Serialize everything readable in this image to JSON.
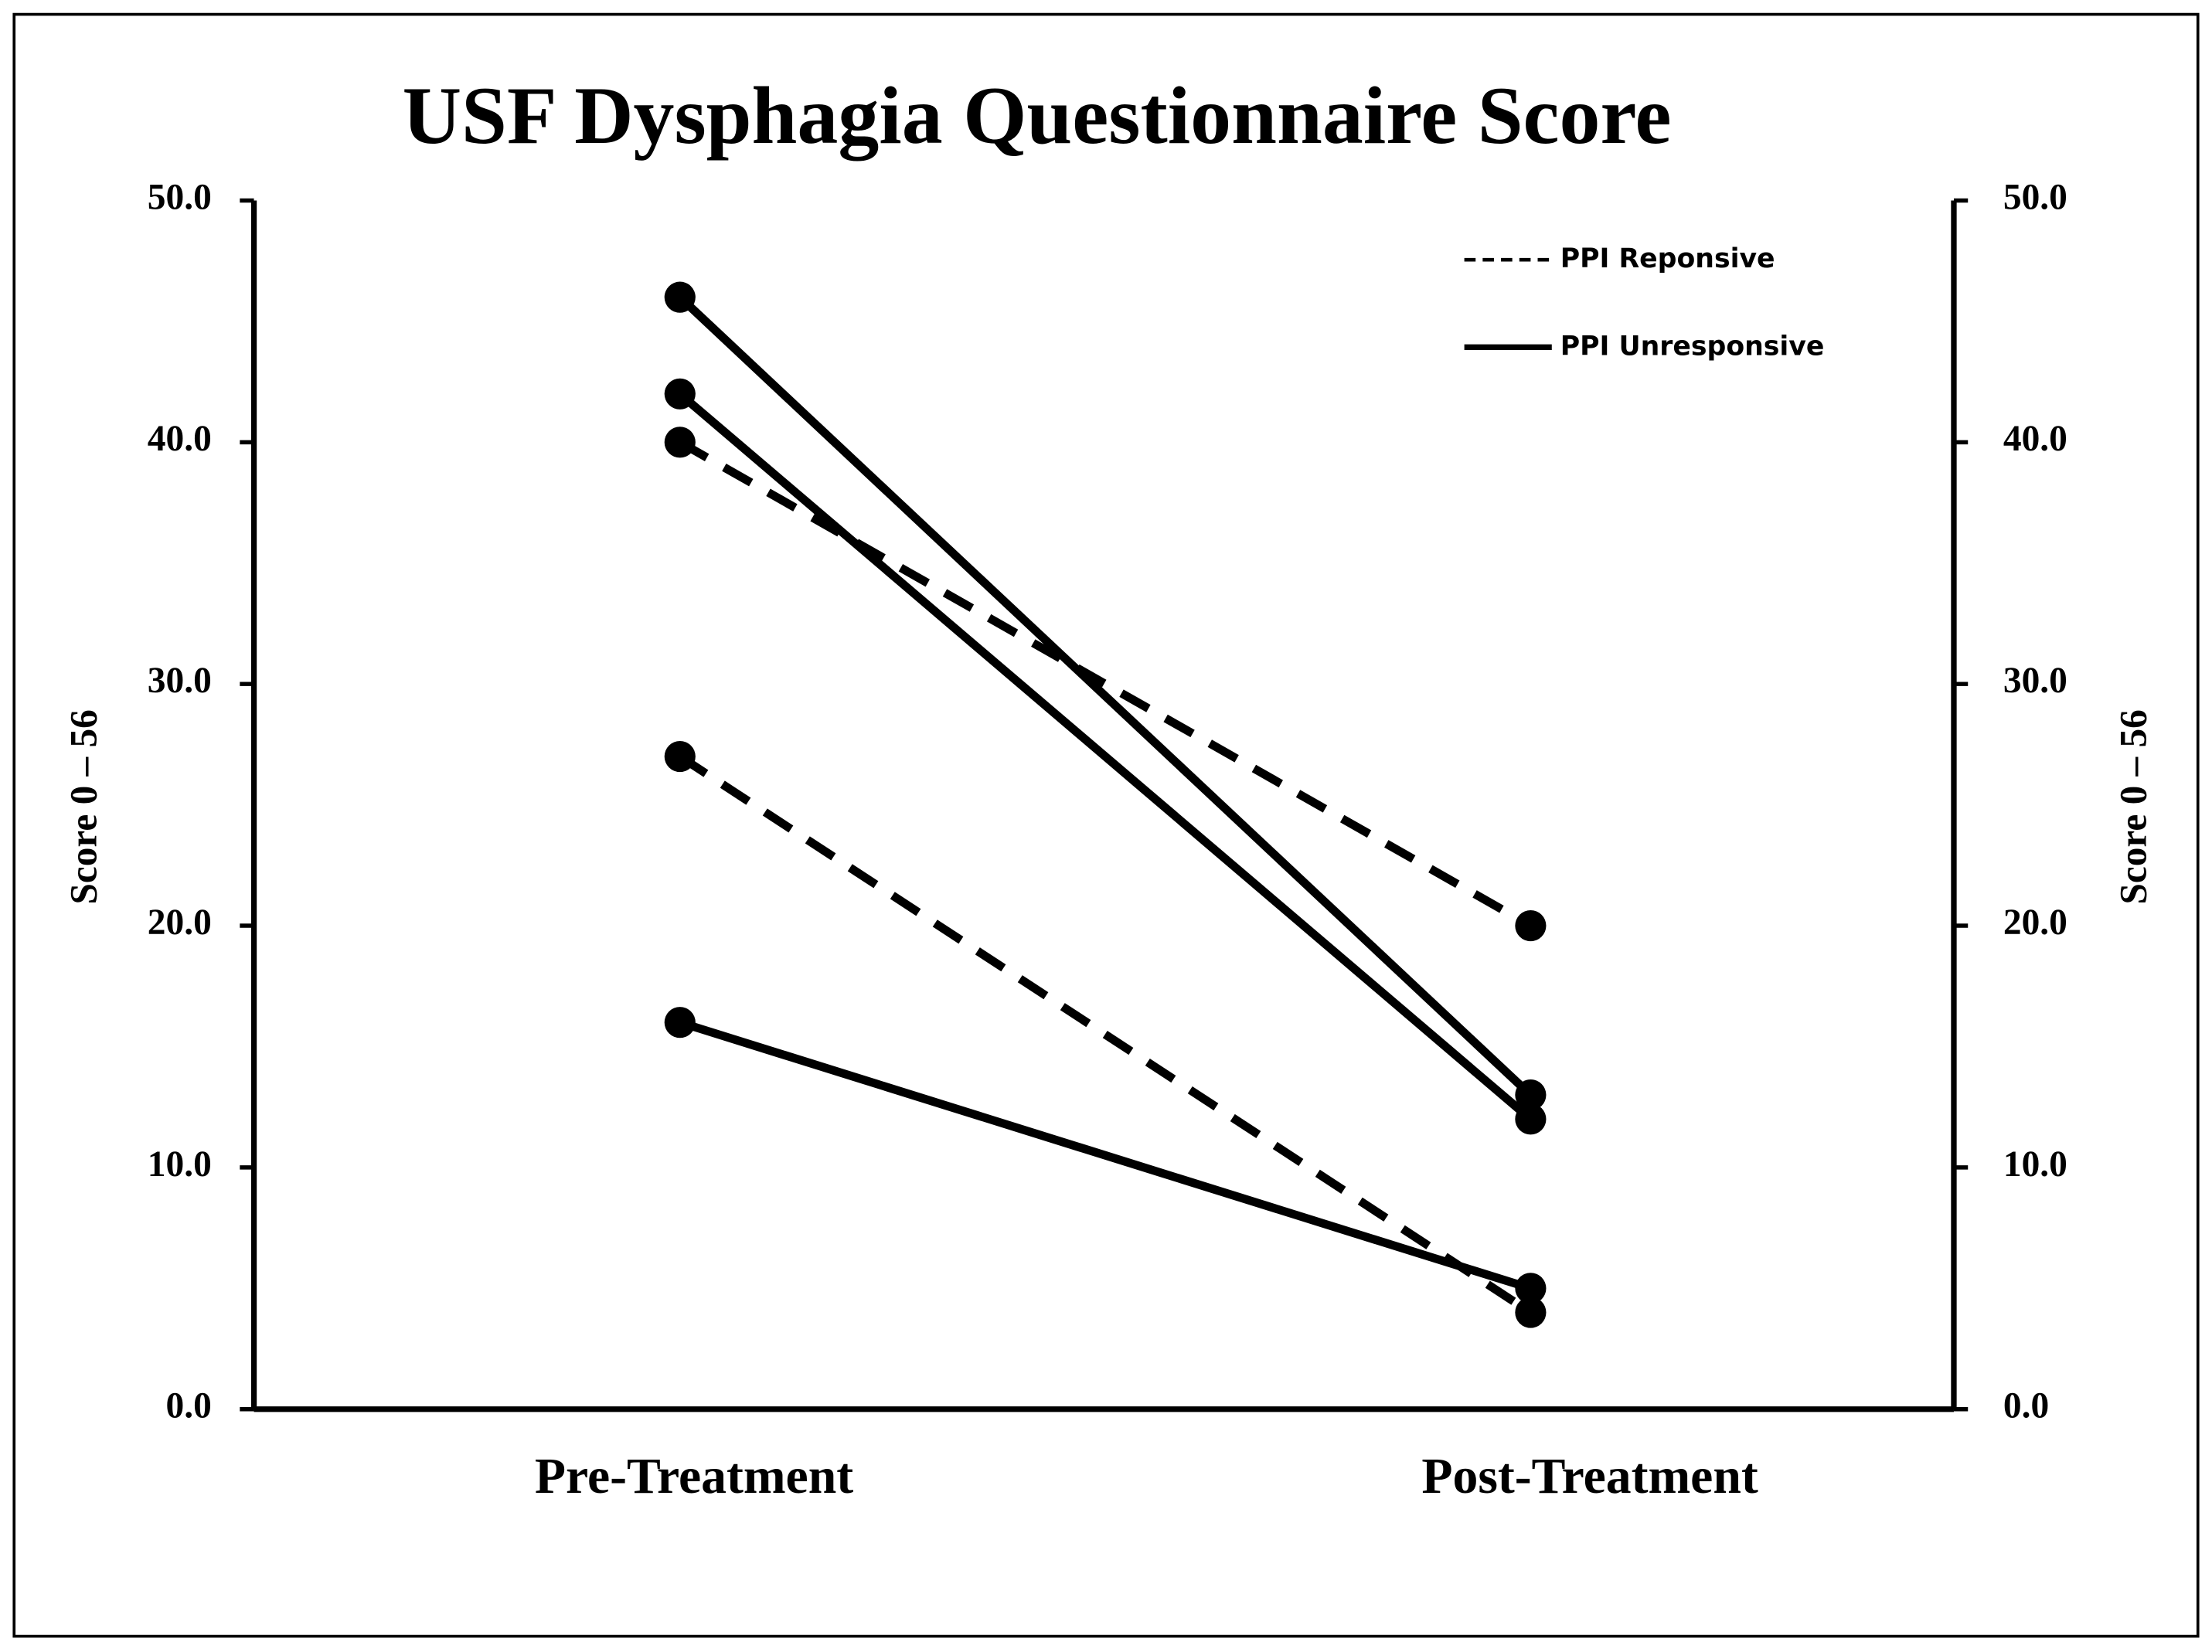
{
  "chart_data": {
    "type": "slope",
    "title": "USF Dysphagia Questionnaire Score",
    "categories": [
      "Pre-Treatment",
      "Post-Treatment"
    ],
    "ylabel": "Score 0 – 56",
    "y2label": "Score 0 – 56",
    "ylim": [
      0,
      50
    ],
    "yticks": [
      {
        "value": 0,
        "label": "0.0"
      },
      {
        "value": 10,
        "label": "10.0"
      },
      {
        "value": 20,
        "label": "20.0"
      },
      {
        "value": 30,
        "label": "30.0"
      },
      {
        "value": 40,
        "label": "40.0"
      },
      {
        "value": 50,
        "label": "50.0"
      }
    ],
    "y2lim": [
      0,
      50
    ],
    "y2ticks": [
      {
        "value": 0,
        "label": "0.0"
      },
      {
        "value": 10,
        "label": "10.0"
      },
      {
        "value": 20,
        "label": "20.0"
      },
      {
        "value": 30,
        "label": "30.0"
      },
      {
        "value": 40,
        "label": "40.0"
      },
      {
        "value": 50,
        "label": "50.0"
      }
    ],
    "legend": "upper right",
    "series": [
      {
        "name": "PPI Reponsive",
        "color": "#000000",
        "style": "dashed",
        "lines": [
          {
            "values": [
              40,
              20
            ]
          },
          {
            "values": [
              27,
              4
            ]
          }
        ]
      },
      {
        "name": "PPI Unresponsive",
        "color": "#000000",
        "style": "solid",
        "lines": [
          {
            "values": [
              46,
              13
            ]
          },
          {
            "values": [
              42,
              12
            ]
          },
          {
            "values": [
              16,
              5
            ]
          }
        ]
      }
    ]
  }
}
